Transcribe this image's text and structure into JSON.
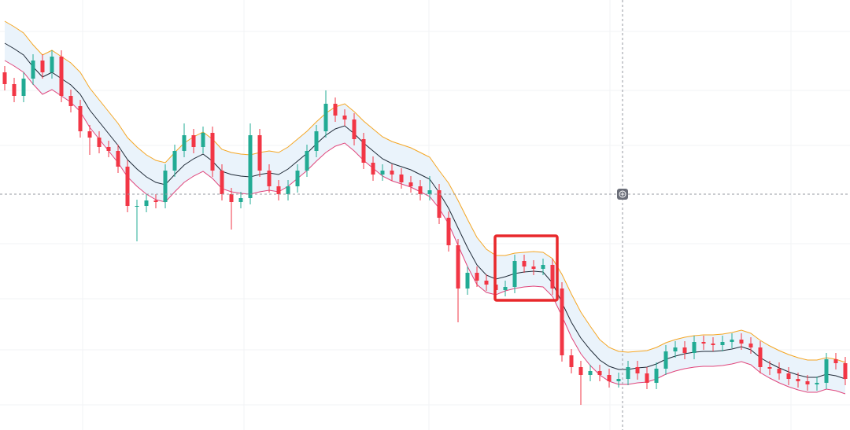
{
  "chart_data": {
    "type": "candlestick",
    "ylim": [
      0,
      547
    ],
    "up_color": "#22ab94",
    "down_color": "#f23645",
    "open": [
      455,
      440,
      425,
      447,
      470,
      455,
      475,
      425,
      412,
      380,
      372,
      360,
      355,
      335,
      285,
      285,
      292,
      290,
      330,
      355,
      375,
      360,
      378,
      330,
      300,
      290,
      295,
      375,
      330,
      310,
      300,
      310,
      330,
      355,
      380,
      415,
      400,
      395,
      370,
      340,
      325,
      330,
      325,
      315,
      310,
      300,
      305,
      270,
      235,
      180,
      200,
      190,
      185,
      178,
      182,
      215,
      208,
      205,
      210,
      180,
      95,
      80,
      70,
      75,
      70,
      62,
      65,
      80,
      72,
      60,
      78,
      100,
      105,
      98,
      112,
      110,
      108,
      112,
      115,
      110,
      105,
      80,
      78,
      72,
      65,
      62,
      58,
      60,
      90,
      85
    ],
    "high": [
      463,
      448,
      455,
      478,
      478,
      483,
      483,
      433,
      420,
      388,
      380,
      368,
      363,
      343,
      293,
      300,
      300,
      338,
      363,
      390,
      383,
      386,
      386,
      338,
      308,
      303,
      390,
      383,
      338,
      318,
      318,
      338,
      363,
      388,
      432,
      423,
      408,
      403,
      378,
      348,
      338,
      338,
      333,
      323,
      318,
      323,
      313,
      278,
      243,
      208,
      208,
      198,
      193,
      190,
      223,
      223,
      216,
      218,
      218,
      188,
      103,
      88,
      83,
      83,
      78,
      73,
      88,
      88,
      80,
      86,
      108,
      113,
      113,
      120,
      120,
      118,
      120,
      123,
      123,
      118,
      113,
      88,
      86,
      80,
      73,
      70,
      68,
      98,
      98,
      93
    ],
    "low": [
      432,
      417,
      417,
      439,
      447,
      447,
      417,
      404,
      372,
      350,
      352,
      347,
      327,
      277,
      240,
      277,
      282,
      282,
      322,
      347,
      352,
      352,
      322,
      292,
      255,
      282,
      287,
      322,
      302,
      292,
      292,
      302,
      322,
      347,
      372,
      392,
      387,
      362,
      332,
      317,
      317,
      317,
      307,
      302,
      292,
      292,
      262,
      227,
      137,
      172,
      182,
      177,
      170,
      170,
      174,
      200,
      197,
      197,
      172,
      87,
      72,
      32,
      62,
      62,
      54,
      54,
      57,
      64,
      52,
      52,
      70,
      92,
      90,
      90,
      102,
      100,
      100,
      104,
      102,
      97,
      72,
      70,
      64,
      57,
      54,
      50,
      50,
      52,
      77,
      57
    ],
    "close": [
      440,
      425,
      447,
      470,
      455,
      475,
      425,
      412,
      380,
      372,
      360,
      355,
      335,
      285,
      285,
      292,
      290,
      330,
      355,
      375,
      360,
      378,
      330,
      300,
      290,
      295,
      375,
      330,
      310,
      300,
      310,
      330,
      355,
      380,
      415,
      400,
      395,
      370,
      340,
      325,
      330,
      325,
      315,
      310,
      300,
      305,
      270,
      235,
      180,
      200,
      190,
      185,
      178,
      182,
      215,
      208,
      205,
      210,
      180,
      95,
      80,
      70,
      75,
      70,
      62,
      65,
      80,
      72,
      60,
      78,
      100,
      105,
      98,
      112,
      110,
      108,
      112,
      115,
      110,
      105,
      80,
      78,
      72,
      65,
      62,
      58,
      60,
      90,
      85,
      65
    ],
    "band_fill": "#eaf3fb",
    "lines": [
      {
        "color": "#f5a623",
        "values": [
          520,
          513,
          505,
          490,
          477,
          483,
          475,
          467,
          455,
          435,
          420,
          405,
          390,
          372,
          360,
          350,
          343,
          340,
          353,
          365,
          373,
          379,
          370,
          357,
          353,
          351,
          350,
          353,
          355,
          353,
          360,
          370,
          380,
          392,
          403,
          411,
          415,
          405,
          393,
          383,
          373,
          367,
          363,
          359,
          353,
          347,
          330,
          314,
          292,
          268,
          245,
          230,
          222,
          222,
          225,
          226,
          227,
          226,
          218,
          198,
          173,
          150,
          132,
          115,
          105,
          100,
          99,
          100,
          101,
          105,
          111,
          115,
          118,
          120,
          121,
          121,
          122,
          124,
          127,
          123,
          114,
          107,
          101,
          96,
          92,
          89,
          89,
          92,
          90,
          86
        ]
      },
      {
        "color": "#1f2a37",
        "values": [
          492,
          485,
          477,
          462,
          449,
          455,
          447,
          439,
          427,
          407,
          392,
          377,
          362,
          344,
          332,
          322,
          315,
          312,
          325,
          337,
          345,
          351,
          342,
          329,
          325,
          323,
          322,
          325,
          327,
          325,
          332,
          342,
          352,
          364,
          375,
          383,
          387,
          377,
          365,
          355,
          345,
          339,
          335,
          331,
          325,
          319,
          302,
          282,
          257,
          232,
          210,
          197,
          192,
          195,
          199,
          201,
          202,
          201,
          187,
          162,
          137,
          117,
          102,
          89,
          81,
          77,
          77,
          79,
          80,
          84,
          90,
          94,
          97,
          99,
          100,
          100,
          101,
          103,
          106,
          102,
          92,
          85,
          79,
          74,
          70,
          67,
          67,
          71,
          69,
          65
        ]
      },
      {
        "color": "#e0457b",
        "values": [
          470,
          463,
          455,
          440,
          427,
          433,
          425,
          417,
          405,
          385,
          370,
          355,
          340,
          322,
          310,
          300,
          293,
          290,
          303,
          315,
          323,
          329,
          320,
          307,
          303,
          301,
          300,
          303,
          305,
          303,
          310,
          320,
          330,
          342,
          353,
          361,
          365,
          355,
          343,
          333,
          323,
          317,
          313,
          309,
          303,
          297,
          282,
          262,
          235,
          208,
          185,
          175,
          172,
          177,
          180,
          182,
          183,
          182,
          170,
          145,
          118,
          97,
          82,
          70,
          62,
          58,
          58,
          60,
          61,
          65,
          71,
          75,
          78,
          80,
          81,
          81,
          82,
          84,
          87,
          83,
          73,
          66,
          60,
          55,
          51,
          48,
          48,
          52,
          50,
          46
        ]
      }
    ]
  }
}
